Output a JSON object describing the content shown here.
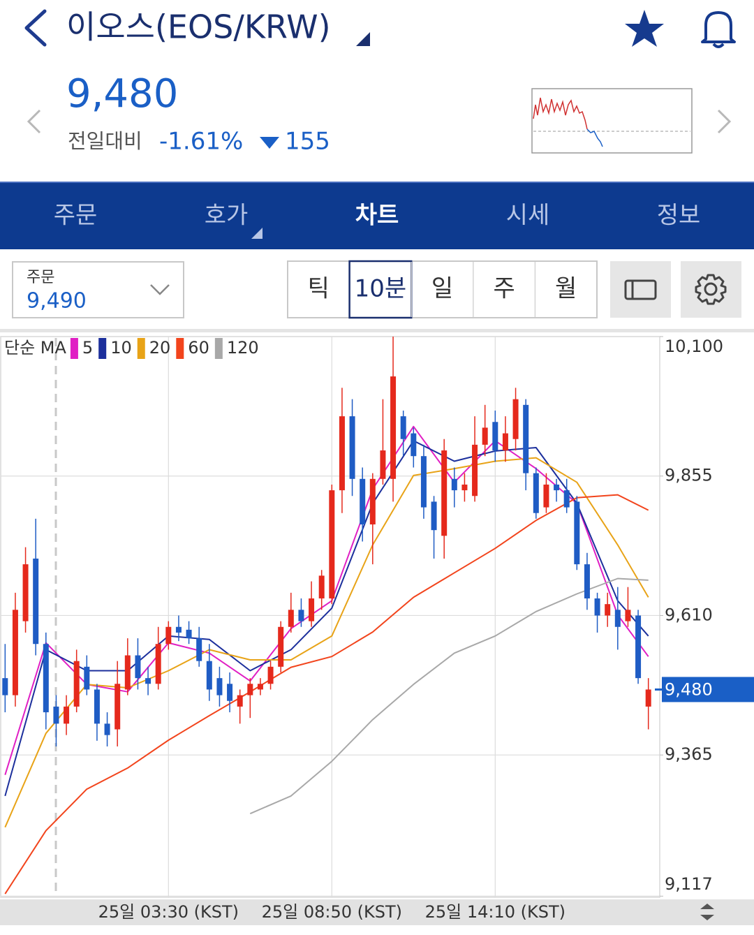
{
  "header": {
    "title": "이오스(EOS/KRW)",
    "price": "9,480",
    "change_label": "전일대비",
    "change_pct": "-1.61%",
    "change_abs": "155"
  },
  "tabs": [
    "주문",
    "호가",
    "차트",
    "시세",
    "정보"
  ],
  "order": {
    "label": "주문",
    "price": "9,490"
  },
  "periods": [
    "틱",
    "10분",
    "일",
    "주",
    "월"
  ],
  "chart_data": {
    "type": "candlestick",
    "legend_title": "단순 MA",
    "categories": [
      null,
      null,
      null,
      null,
      null,
      null,
      null,
      null,
      null,
      null,
      null,
      null,
      null,
      null,
      null,
      null,
      "25일 03:30 (KST)",
      null,
      null,
      null,
      null,
      null,
      null,
      null,
      null,
      null,
      null,
      null,
      null,
      null,
      null,
      null,
      "25일 08:50 (KST)",
      null,
      null,
      null,
      null,
      null,
      null,
      null,
      null,
      null,
      null,
      null,
      null,
      null,
      null,
      null,
      "25일 14:10 (KST)",
      null,
      null,
      null,
      null,
      null,
      null,
      null,
      null,
      null,
      null,
      null,
      null,
      null,
      null,
      null
    ],
    "open": [
      9500,
      9470,
      9600,
      9710,
      9560,
      9450,
      9420,
      9450,
      9520,
      9480,
      9420,
      9410,
      9480,
      9540,
      9500,
      9490,
      9560,
      9590,
      9585,
      9570,
      9530,
      9500,
      9490,
      9450,
      9470,
      9480,
      9490,
      9520,
      9590,
      9620,
      9600,
      9640,
      9640,
      9830,
      9960,
      9850,
      9770,
      9850,
      9850,
      9960,
      9930,
      9890,
      9810,
      9750,
      9850,
      9830,
      9820,
      9910,
      9950,
      9900,
      9920,
      9980,
      9860,
      9800,
      9840,
      9830,
      9810,
      9700,
      9640,
      9610,
      9620,
      9600,
      9610,
      9450
    ],
    "high": [
      9560,
      9650,
      9730,
      9780,
      9580,
      9470,
      9470,
      9550,
      9540,
      9490,
      9440,
      9530,
      9570,
      9570,
      9520,
      9590,
      9600,
      9610,
      9600,
      9590,
      9560,
      9520,
      9510,
      9480,
      9500,
      9500,
      9530,
      9600,
      9650,
      9640,
      9670,
      9690,
      9840,
      10010,
      9990,
      9870,
      9860,
      9990,
      10100,
      9970,
      9940,
      9910,
      9820,
      9920,
      9870,
      9860,
      9960,
      9980,
      9970,
      9960,
      10010,
      9990,
      9870,
      9860,
      9850,
      9850,
      9820,
      9720,
      9650,
      9650,
      9660,
      9660,
      9620,
      9500
    ],
    "low": [
      9440,
      9450,
      9580,
      9540,
      9410,
      9380,
      9400,
      9440,
      9470,
      9390,
      9380,
      9380,
      9470,
      9480,
      9470,
      9480,
      9550,
      9565,
      9560,
      9520,
      9460,
      9450,
      9440,
      9420,
      9430,
      9470,
      9480,
      9510,
      9580,
      9590,
      9590,
      9620,
      9630,
      9790,
      9820,
      9740,
      9700,
      9840,
      9810,
      9890,
      9870,
      9780,
      9710,
      9710,
      9800,
      9810,
      9810,
      9890,
      9880,
      9880,
      9900,
      9830,
      9780,
      9790,
      9810,
      9790,
      9690,
      9620,
      9580,
      9590,
      9550,
      9590,
      9490,
      9410
    ],
    "close": [
      9470,
      9620,
      9700,
      9560,
      9440,
      9420,
      9450,
      9530,
      9480,
      9420,
      9400,
      9490,
      9540,
      9500,
      9490,
      9560,
      9590,
      9580,
      9570,
      9530,
      9480,
      9470,
      9460,
      9470,
      9490,
      9490,
      9520,
      9590,
      9620,
      9600,
      9640,
      9680,
      9830,
      9960,
      9850,
      9770,
      9850,
      9900,
      10030,
      9920,
      9890,
      9800,
      9760,
      9900,
      9830,
      9840,
      9910,
      9940,
      9900,
      9930,
      9990,
      9860,
      9790,
      9840,
      9830,
      9800,
      9700,
      9640,
      9610,
      9630,
      9590,
      9620,
      9500,
      9480
    ],
    "up_color": "#e5291c",
    "down_color": "#1f5cc4",
    "x": [
      0,
      4,
      8,
      12,
      16,
      20,
      24,
      28,
      32,
      36,
      40,
      44,
      48,
      52,
      56,
      60,
      63
    ],
    "series": [
      {
        "name": "5",
        "color": "#e01fc4",
        "values": [
          9330,
          9562,
          9489,
          9476,
          9562,
          9544,
          9495,
          9587,
          9636,
          9832,
          9942,
          9844,
          9917,
          9868,
          9807,
          9611,
          9538
        ]
      },
      {
        "name": "10",
        "color": "#1c2f9c",
        "values": [
          9293,
          9550,
          9513,
          9513,
          9574,
          9568,
          9513,
          9550,
          9623,
          9807,
          9917,
          9881,
          9899,
          9905,
          9807,
          9636,
          9574
        ]
      },
      {
        "name": "20",
        "color": "#e8a317",
        "values": [
          9238,
          9403,
          9489,
          9483,
          9513,
          9550,
          9532,
          9532,
          9574,
          9734,
          9856,
          9868,
          9881,
          9887,
          9844,
          9734,
          9642
        ]
      },
      {
        "name": "60",
        "color": "#f2441c",
        "values": [
          9121,
          9232,
          9305,
          9342,
          9391,
          9434,
          9476,
          9519,
          9538,
          9581,
          9642,
          9685,
          9728,
          9777,
          9817,
          9822,
          9795
        ]
      },
      {
        "name": "120",
        "color": "#a8a8a8",
        "values": [
          null,
          null,
          null,
          null,
          null,
          null,
          9262,
          9293,
          9354,
          9427,
          9489,
          9544,
          9574,
          9617,
          9648,
          9675,
          9672
        ]
      }
    ],
    "ylim": [
      9115,
      10100
    ],
    "yticks": [
      {
        "value": 10100,
        "label": "10,100"
      },
      {
        "value": 9855,
        "label": "9,855"
      },
      {
        "value": 9610,
        "label": "9,610"
      },
      {
        "value": 9365,
        "label": "9,365"
      },
      {
        "value": 9117,
        "label": "9,117"
      }
    ],
    "current_price": {
      "value": 9480,
      "label": "9,480"
    },
    "grid": true
  }
}
